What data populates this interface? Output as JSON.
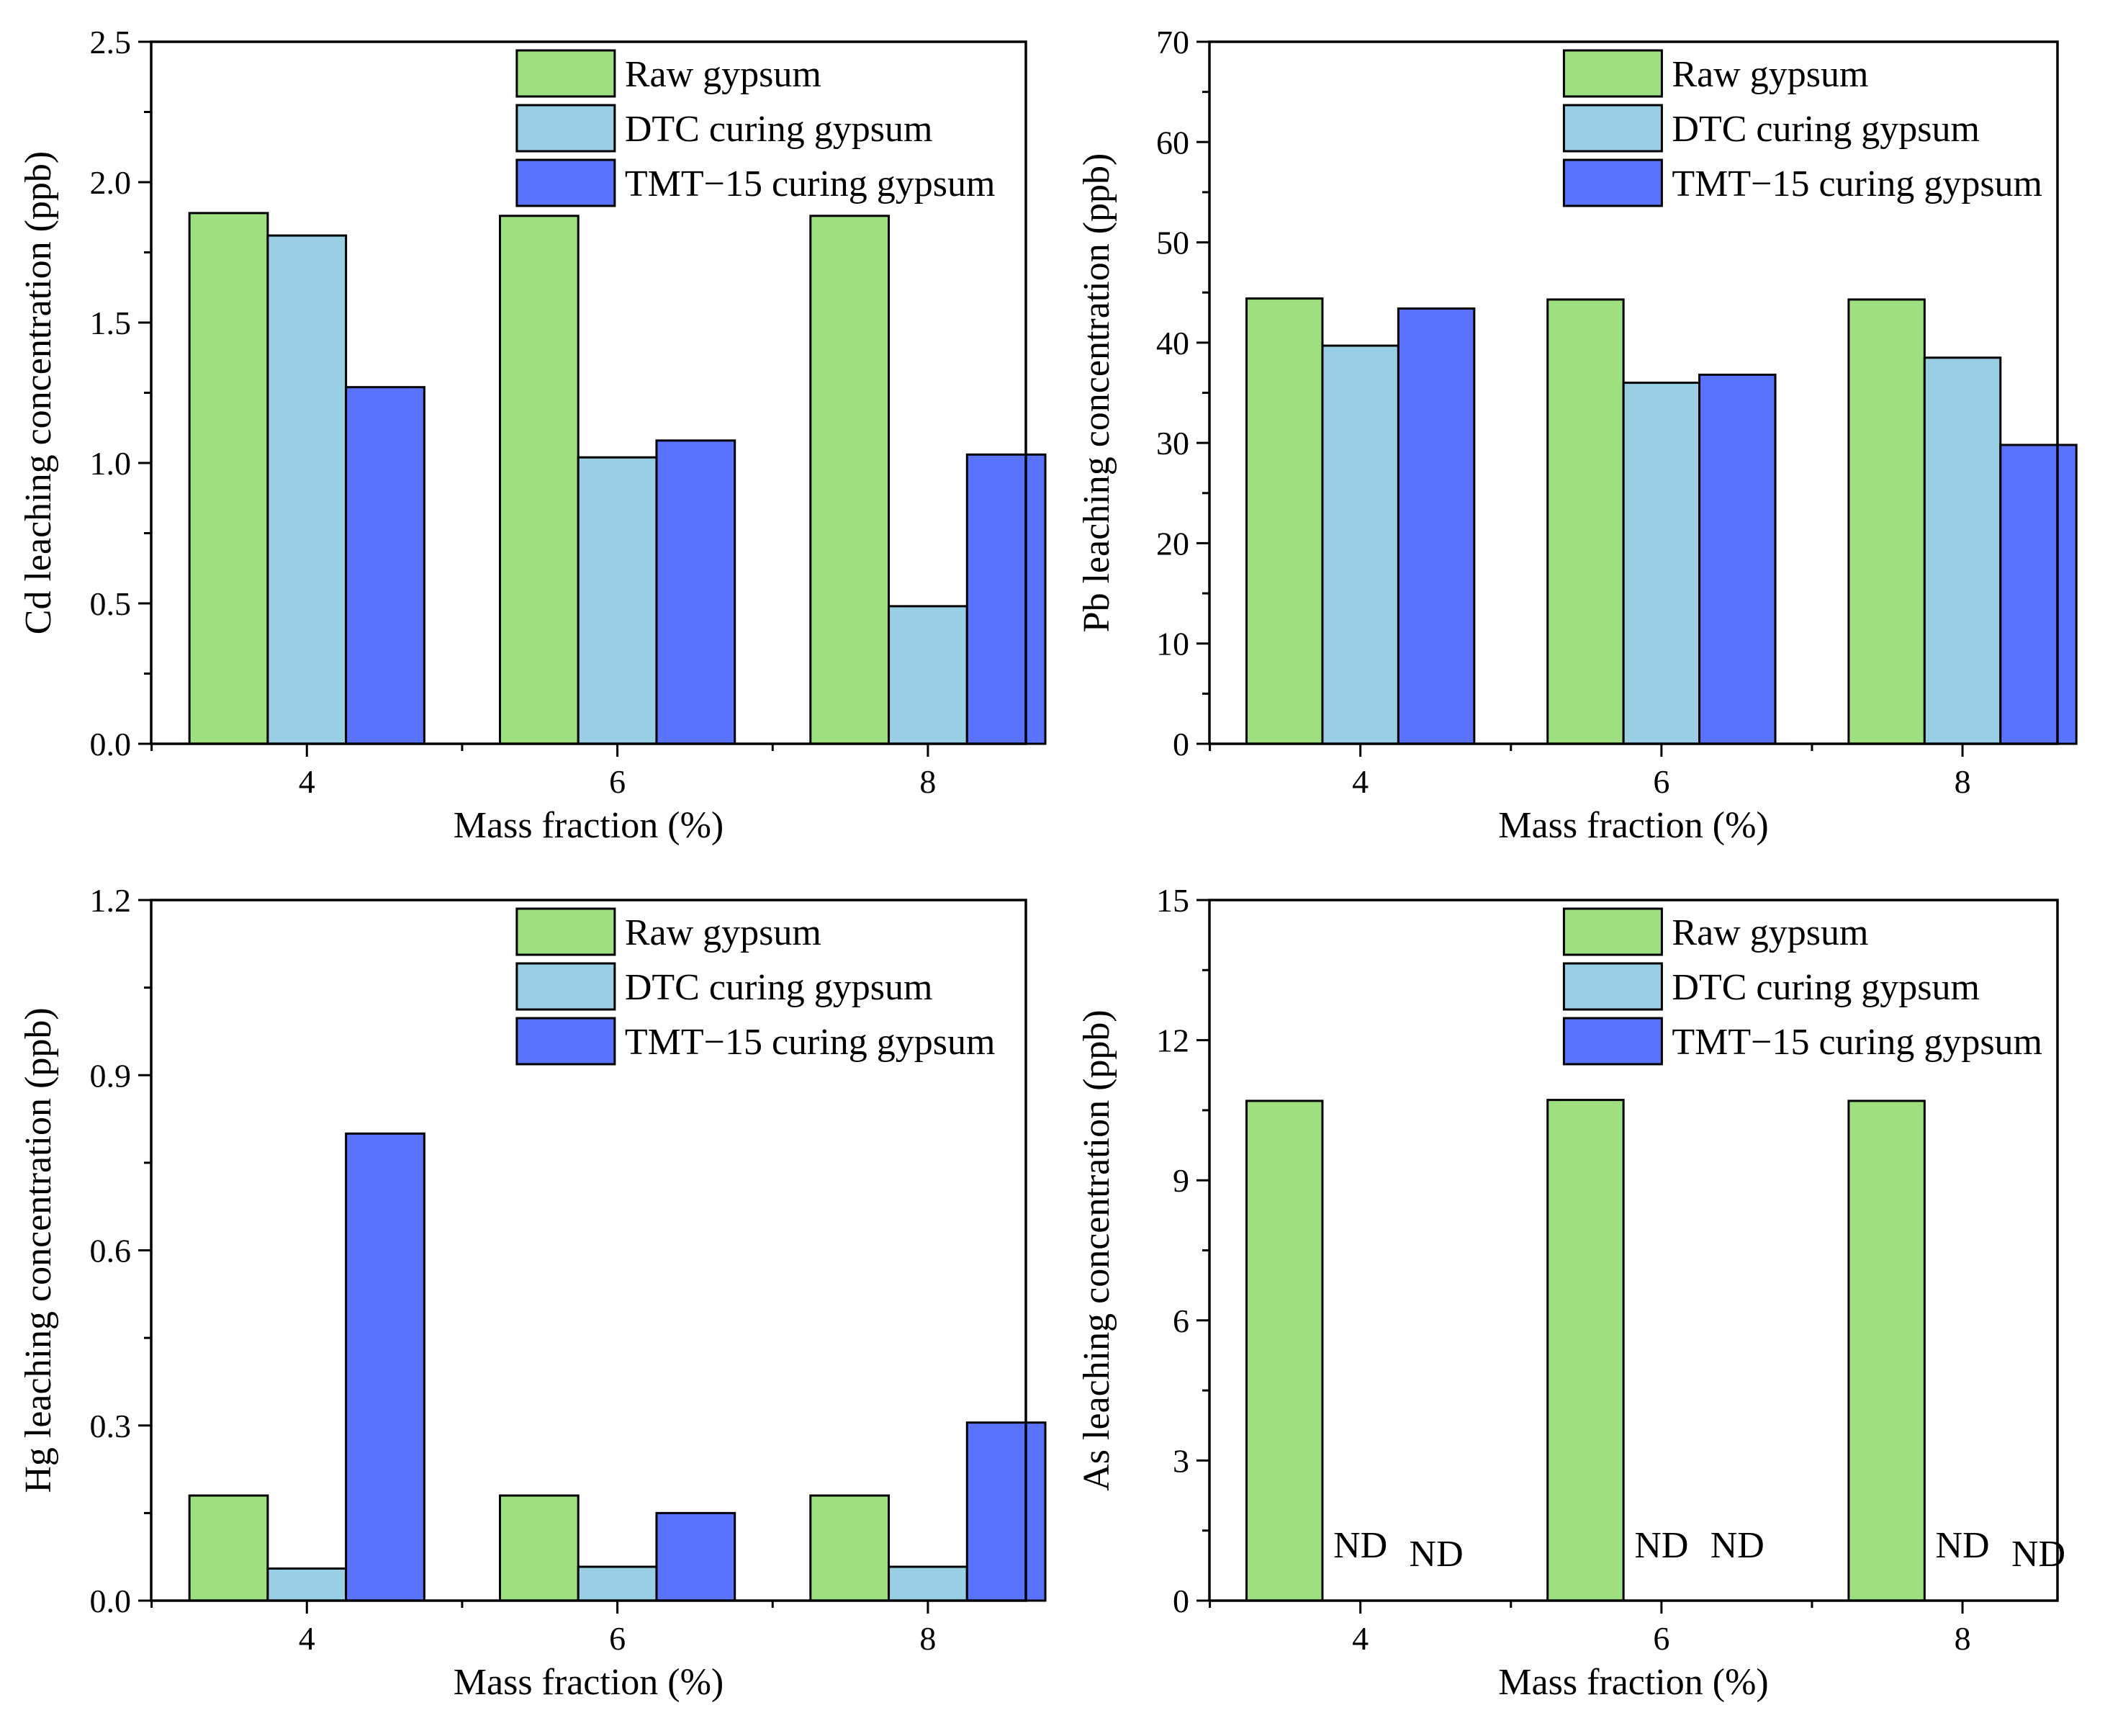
{
  "chart_data": [
    {
      "type": "bar",
      "panel": "top-left",
      "categories": [
        "4",
        "6",
        "8"
      ],
      "series": [
        {
          "name": "Raw gypsum",
          "values": [
            1.89,
            1.88,
            1.88
          ]
        },
        {
          "name": "DTC curing gypsum",
          "values": [
            1.81,
            1.02,
            0.49
          ]
        },
        {
          "name": "TMT−15 curing gypsum",
          "values": [
            1.27,
            1.08,
            1.03
          ]
        }
      ],
      "xlabel": "Mass fraction (%)",
      "ylabel": "Cd leaching concentration (ppb)",
      "ylim": [
        0,
        2.5
      ],
      "yticks": [
        "0.0",
        "0.5",
        "1.0",
        "1.5",
        "2.0",
        "2.5"
      ],
      "legend": "top-right",
      "annotations": []
    },
    {
      "type": "bar",
      "panel": "top-right",
      "categories": [
        "4",
        "6",
        "8"
      ],
      "series": [
        {
          "name": "Raw gypsum",
          "values": [
            44.4,
            44.3,
            44.3
          ]
        },
        {
          "name": "DTC curing gypsum",
          "values": [
            39.7,
            36.0,
            38.5
          ]
        },
        {
          "name": "TMT−15 curing gypsum",
          "values": [
            43.4,
            36.8,
            29.8
          ]
        }
      ],
      "xlabel": "Mass fraction (%)",
      "ylabel": "Pb leaching concentration (ppb)",
      "ylim": [
        0,
        70
      ],
      "yticks": [
        "0",
        "10",
        "20",
        "30",
        "40",
        "50",
        "60",
        "70"
      ],
      "legend": "top-right",
      "annotations": []
    },
    {
      "type": "bar",
      "panel": "bottom-left",
      "categories": [
        "4",
        "6",
        "8"
      ],
      "series": [
        {
          "name": "Raw gypsum",
          "values": [
            0.18,
            0.18,
            0.18
          ]
        },
        {
          "name": "DTC curing gypsum",
          "values": [
            0.055,
            0.058,
            0.058
          ]
        },
        {
          "name": "TMT−15 curing gypsum",
          "values": [
            0.8,
            0.15,
            0.305
          ]
        }
      ],
      "xlabel": "Mass fraction (%)",
      "ylabel": "Hg leaching concentration (ppb)",
      "ylim": [
        0,
        1.2
      ],
      "yticks": [
        "0.0",
        "0.3",
        "0.6",
        "0.9",
        "1.2"
      ],
      "legend": "top-right",
      "annotations": []
    },
    {
      "type": "bar",
      "panel": "bottom-right",
      "categories": [
        "4",
        "6",
        "8"
      ],
      "series": [
        {
          "name": "Raw gypsum",
          "values": [
            10.7,
            10.72,
            10.7
          ]
        },
        {
          "name": "DTC curing gypsum",
          "values": [
            0,
            0,
            0
          ]
        },
        {
          "name": "TMT−15 curing gypsum",
          "values": [
            0,
            0,
            0
          ]
        }
      ],
      "xlabel": "Mass fraction (%)",
      "ylabel": "As leaching concentration (ppb)",
      "ylim": [
        0,
        15
      ],
      "yticks": [
        "0",
        "3",
        "6",
        "9",
        "12",
        "15"
      ],
      "legend": "top-right",
      "annotations": [
        {
          "text": "ND",
          "category": 0,
          "series": 1
        },
        {
          "text": "ND",
          "category": 0,
          "series": 2
        },
        {
          "text": "ND",
          "category": 1,
          "series": 1
        },
        {
          "text": "ND",
          "category": 1,
          "series": 2
        },
        {
          "text": "ND",
          "category": 2,
          "series": 1
        },
        {
          "text": "ND",
          "category": 2,
          "series": 2
        }
      ]
    }
  ],
  "colors": {
    "raw": "#9ee080",
    "dtc": "#98cfe4",
    "tmt": "#5a73ff",
    "axis": "#000000"
  }
}
